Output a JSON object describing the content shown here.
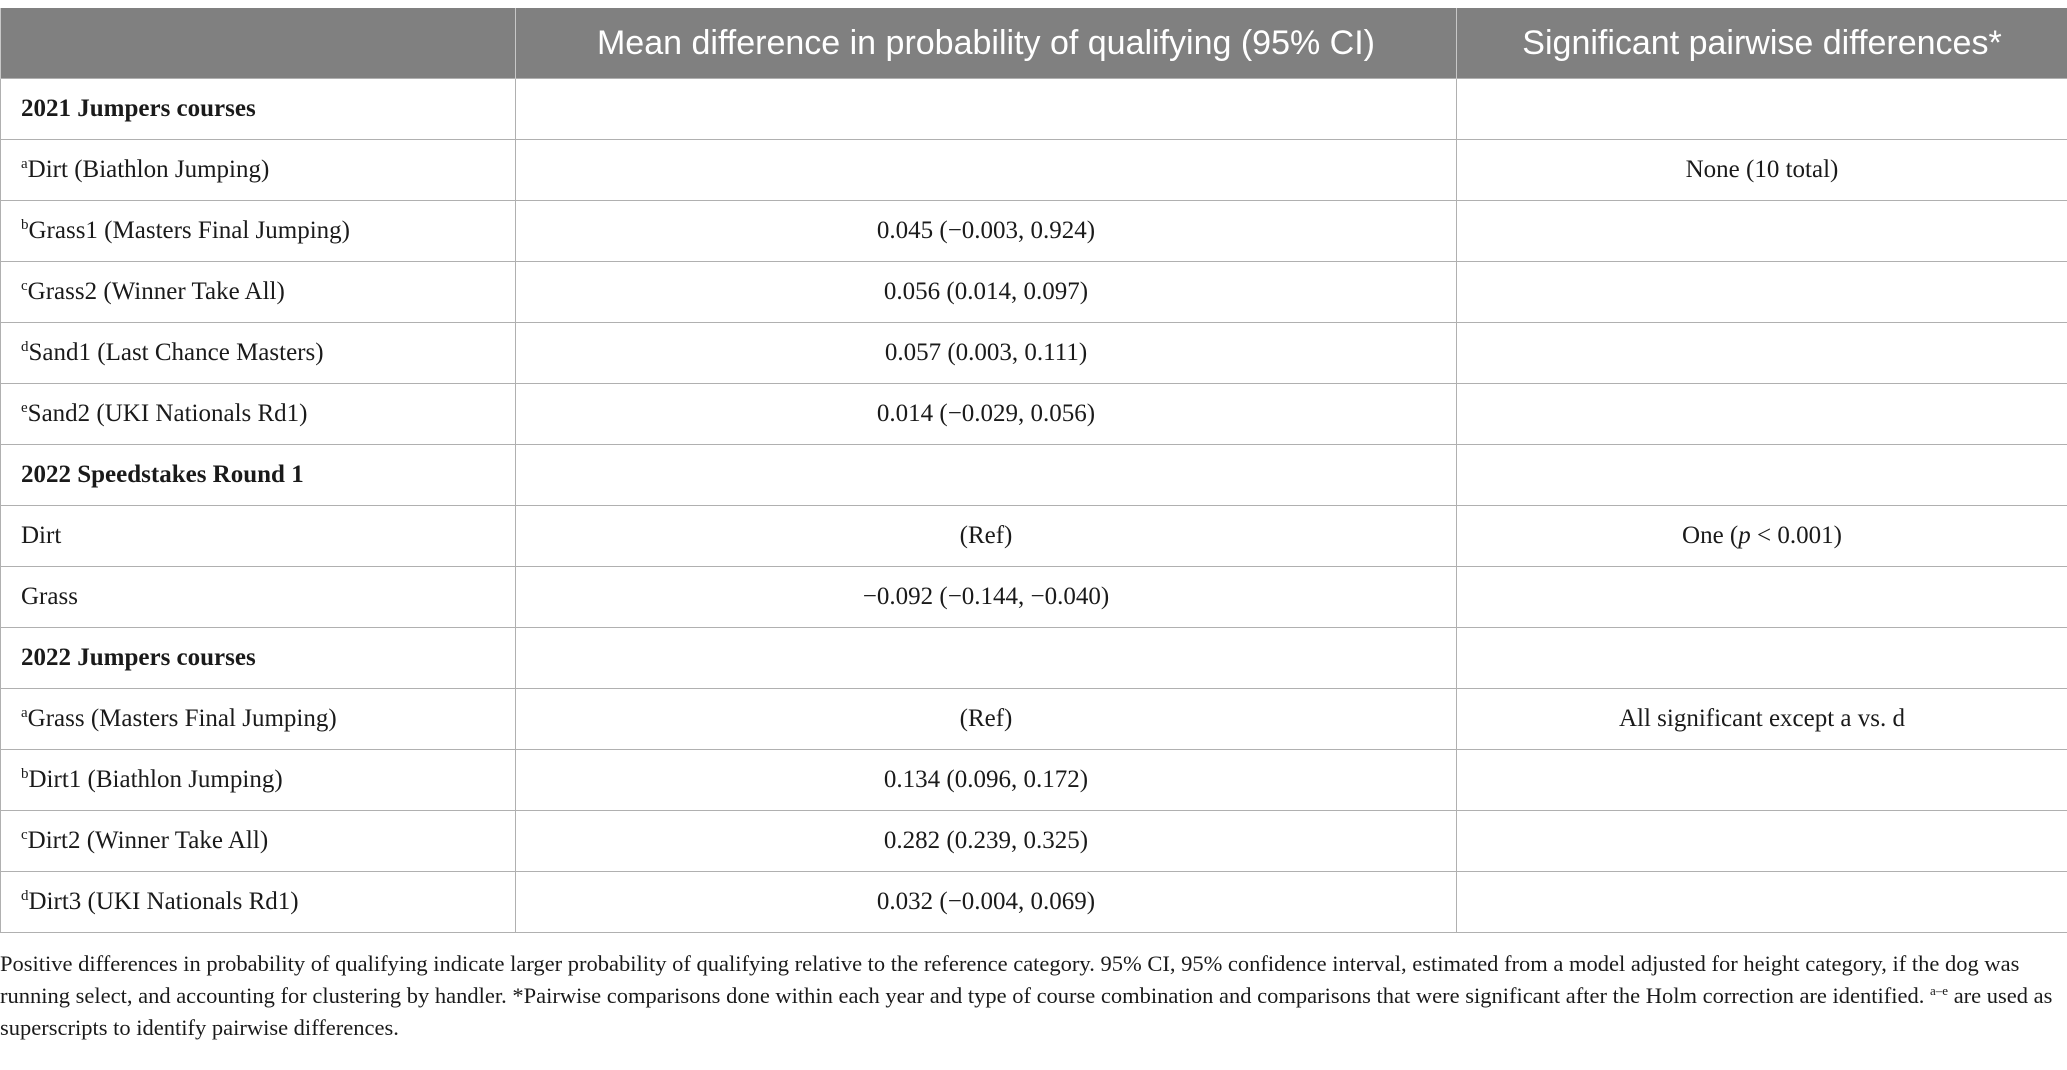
{
  "headers": {
    "col1": "",
    "col2": "Mean difference in probability of qualifying (95% CI)",
    "col3": "Significant pairwise differences*"
  },
  "rows": [
    {
      "sup": "",
      "label": "2021 Jumpers courses",
      "value": "",
      "sig": "",
      "section": true
    },
    {
      "sup": "a",
      "label": "Dirt (Biathlon Jumping)",
      "value": "",
      "sig": "None (10 total)",
      "section": false
    },
    {
      "sup": "b",
      "label": "Grass1 (Masters Final Jumping)",
      "value": "0.045 (−0.003, 0.924)",
      "sig": "",
      "section": false
    },
    {
      "sup": "c",
      "label": "Grass2 (Winner Take All)",
      "value": "0.056 (0.014, 0.097)",
      "sig": "",
      "section": false
    },
    {
      "sup": "d",
      "label": "Sand1 (Last Chance Masters)",
      "value": "0.057 (0.003, 0.111)",
      "sig": "",
      "section": false
    },
    {
      "sup": "e",
      "label": "Sand2 (UKI Nationals Rd1)",
      "value": "0.014 (−0.029, 0.056)",
      "sig": "",
      "section": false
    },
    {
      "sup": "",
      "label": "2022 Speedstakes Round 1",
      "value": "",
      "sig": "",
      "section": true
    },
    {
      "sup": "",
      "label": "Dirt",
      "value": "(Ref)",
      "sig": "",
      "sig_pre": "One (",
      "sig_italic": "p",
      "sig_post": " < 0.001)",
      "section": false
    },
    {
      "sup": "",
      "label": "Grass",
      "value": "−0.092 (−0.144, −0.040)",
      "sig": "",
      "section": false
    },
    {
      "sup": "",
      "label": "2022 Jumpers courses",
      "value": "",
      "sig": "",
      "section": true
    },
    {
      "sup": "a",
      "label": "Grass (Masters Final Jumping)",
      "value": "(Ref)",
      "sig": "All significant except a vs. d",
      "section": false
    },
    {
      "sup": "b",
      "label": "Dirt1 (Biathlon Jumping)",
      "value": "0.134 (0.096, 0.172)",
      "sig": "",
      "section": false
    },
    {
      "sup": "c",
      "label": "Dirt2 (Winner Take All)",
      "value": "0.282 (0.239, 0.325)",
      "sig": "",
      "section": false
    },
    {
      "sup": "d",
      "label": "Dirt3 (UKI Nationals Rd1)",
      "value": "0.032 (−0.004, 0.069)",
      "sig": "",
      "section": false
    }
  ],
  "footnote": {
    "part1": "Positive differences in probability of qualifying indicate larger probability of qualifying relative to the reference category. 95% CI, 95% confidence interval, estimated from a model adjusted for height category, if the dog was running select, and accounting for clustering by handler. *Pairwise comparisons done within each year and type of course combination and comparisons that were significant after the Holm correction are identified. ",
    "sup": "a–e",
    "part2": " are used as superscripts to identify pairwise differences."
  }
}
